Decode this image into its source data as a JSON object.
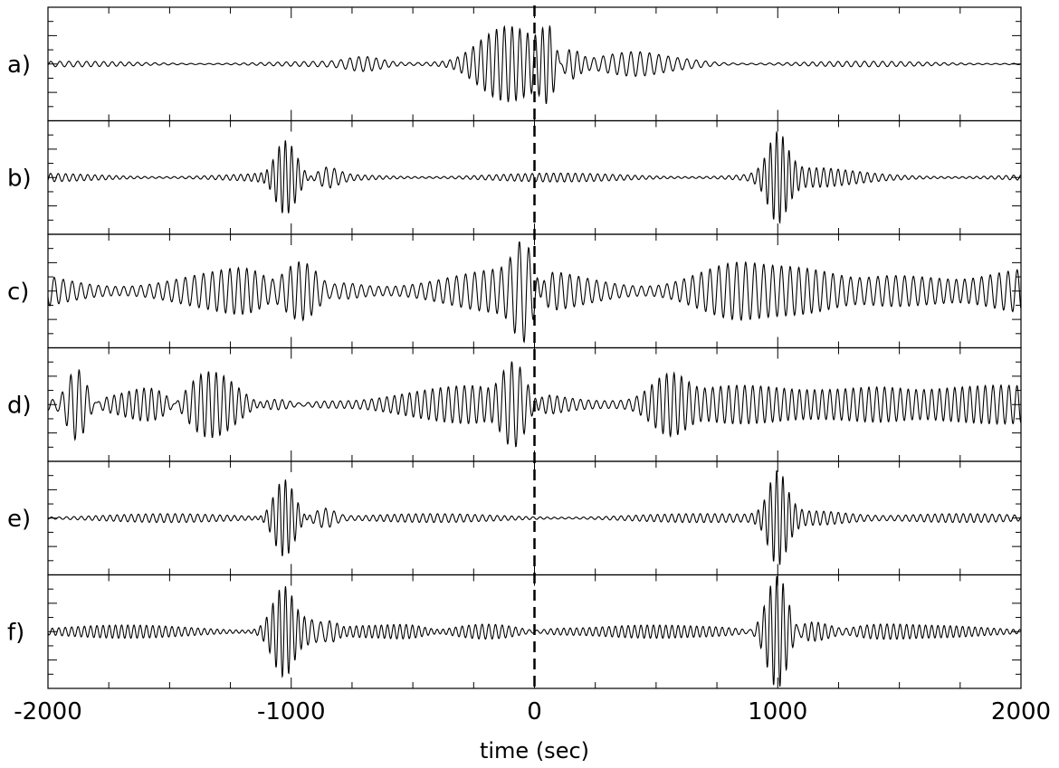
{
  "chart_data": {
    "type": "line",
    "x_label": "time (sec)",
    "x_range": [
      -2000,
      2000
    ],
    "x_ticks": [
      "-2000",
      "-1000",
      "0",
      "1000",
      "2000"
    ],
    "reference_line": {
      "x": 0,
      "style": "dashed"
    },
    "panels": [
      {
        "label": "a)",
        "background": {
          "amplitude": 0.05,
          "period": 36
        },
        "packets": [
          {
            "center": -100,
            "width": 170,
            "amplitude": 0.7,
            "period": 32
          },
          {
            "center": 60,
            "width": 40,
            "amplitude": 0.55,
            "period": 30
          },
          {
            "center": 150,
            "width": 50,
            "amplitude": 0.35,
            "period": 34
          },
          {
            "center": 450,
            "width": 200,
            "amplitude": 0.22,
            "period": 38
          },
          {
            "center": -700,
            "width": 100,
            "amplitude": 0.1,
            "period": 36
          }
        ]
      },
      {
        "label": "b)",
        "background": {
          "amplitude": 0.08,
          "period": 30
        },
        "packets": [
          {
            "center": -1030,
            "width": 60,
            "amplitude": 0.7,
            "period": 26
          },
          {
            "center": -860,
            "width": 60,
            "amplitude": 0.2,
            "period": 34
          },
          {
            "center": 1000,
            "width": 55,
            "amplitude": 0.95,
            "period": 26
          },
          {
            "center": 1140,
            "width": 200,
            "amplitude": 0.1,
            "period": 30
          }
        ]
      },
      {
        "label": "c)",
        "background": {
          "amplitude": 0.42,
          "period": 36
        },
        "packets": [
          {
            "center": -30,
            "width": 60,
            "amplitude": 0.75,
            "period": 40
          },
          {
            "center": -1000,
            "width": 150,
            "amplitude": 0.25,
            "period": 32
          },
          {
            "center": 800,
            "width": 200,
            "amplitude": 0.2,
            "period": 36
          },
          {
            "center": 1500,
            "width": 250,
            "amplitude": 0.2,
            "period": 36
          }
        ]
      },
      {
        "label": "d)",
        "background": {
          "amplitude": 0.35,
          "period": 32
        },
        "packets": [
          {
            "center": -1880,
            "width": 60,
            "amplitude": 0.7,
            "period": 34
          },
          {
            "center": -1400,
            "width": 250,
            "amplitude": 0.3,
            "period": 30
          },
          {
            "center": -1100,
            "width": 150,
            "amplitude": 0.25,
            "period": 32
          },
          {
            "center": -80,
            "width": 80,
            "amplitude": 0.5,
            "period": 36
          },
          {
            "center": 560,
            "width": 100,
            "amplitude": 0.4,
            "period": 30
          },
          {
            "center": 1400,
            "width": 250,
            "amplitude": 0.25,
            "period": 32
          }
        ]
      },
      {
        "label": "e)",
        "background": {
          "amplitude": 0.08,
          "period": 30
        },
        "packets": [
          {
            "center": -1030,
            "width": 60,
            "amplitude": 0.7,
            "period": 26
          },
          {
            "center": -860,
            "width": 60,
            "amplitude": 0.2,
            "period": 34
          },
          {
            "center": 1000,
            "width": 55,
            "amplitude": 0.95,
            "period": 26
          },
          {
            "center": 1140,
            "width": 200,
            "amplitude": 0.12,
            "period": 30
          }
        ]
      },
      {
        "label": "f)",
        "background": {
          "amplitude": 0.12,
          "period": 26
        },
        "packets": [
          {
            "center": -1030,
            "width": 65,
            "amplitude": 0.8,
            "period": 26
          },
          {
            "center": -880,
            "width": 60,
            "amplitude": 0.25,
            "period": 34
          },
          {
            "center": 1000,
            "width": 60,
            "amplitude": 1.0,
            "period": 26
          },
          {
            "center": 1150,
            "width": 250,
            "amplitude": 0.15,
            "period": 28
          },
          {
            "center": -200,
            "width": 250,
            "amplitude": 0.1,
            "period": 28
          }
        ]
      }
    ]
  }
}
